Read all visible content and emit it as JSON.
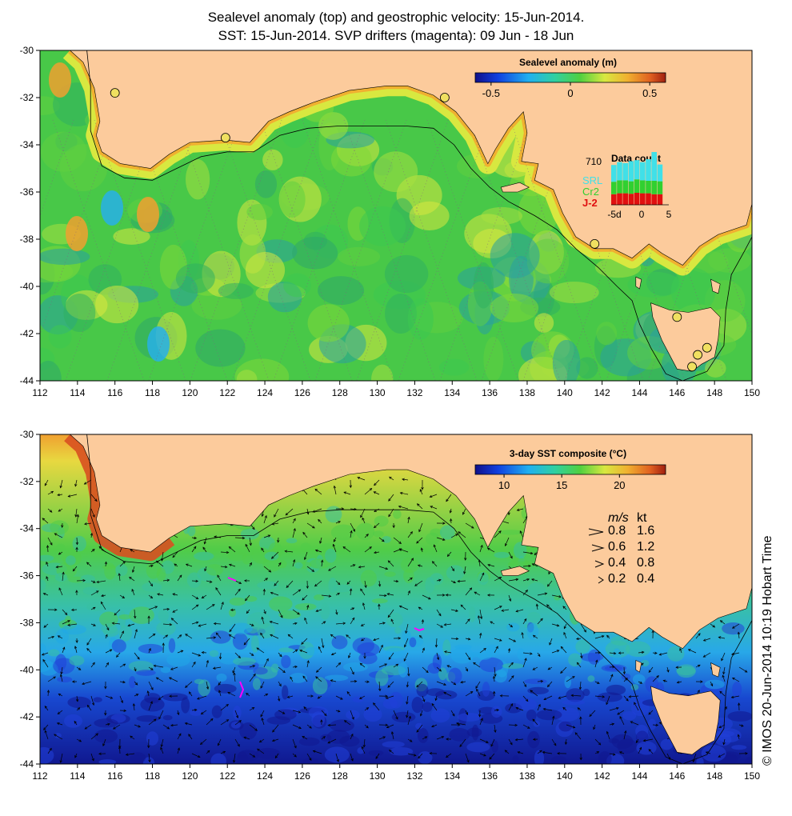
{
  "title": {
    "line1": "Sealevel anomaly (top) and geostrophic velocity: 15-Jun-2014.",
    "line2": "SST: 15-Jun-2014. SVP drifters (magenta): 09 Jun - 18 Jun"
  },
  "axes": {
    "lon_ticks": [
      "112",
      "114",
      "116",
      "118",
      "120",
      "122",
      "124",
      "126",
      "128",
      "130",
      "132",
      "134",
      "136",
      "138",
      "140",
      "142",
      "144",
      "146",
      "148",
      "150"
    ],
    "lat_ticks": [
      "-30",
      "-32",
      "-34",
      "-36",
      "-38",
      "-40",
      "-42",
      "-44"
    ],
    "lon_range": [
      112,
      150
    ],
    "lat_range": [
      -44,
      -30
    ]
  },
  "top_panel": {
    "colorbar_title": "Sealevel anomaly (m)",
    "colorbar_ticks": [
      "-0.5",
      "0",
      "0.5"
    ],
    "colorbar_range": [
      -0.6,
      0.6
    ],
    "data_count": {
      "title": "Data count",
      "max_label": "710",
      "satellites": [
        {
          "name": "SRL",
          "color": "#40e0e8"
        },
        {
          "name": "Cr2",
          "color": "#30d030"
        },
        {
          "name": "J-2",
          "color": "#e01010"
        }
      ],
      "x_ticks": [
        "-5d",
        "0",
        "5"
      ],
      "bars_fraction": {
        "SRL": [
          0.35,
          0.38,
          0.36,
          0.42,
          0.4,
          0.38,
          0.45,
          0.6,
          0.35
        ],
        "Cr2": [
          0.26,
          0.27,
          0.27,
          0.26,
          0.28,
          0.27,
          0.26,
          0.28,
          0.27
        ],
        "J-2": [
          0.22,
          0.24,
          0.24,
          0.23,
          0.25,
          0.24,
          0.24,
          0.22,
          0.22
        ]
      }
    },
    "tide_gauges": [
      {
        "lon": 116.0,
        "lat": -31.8
      },
      {
        "lon": 121.9,
        "lat": -33.7
      },
      {
        "lon": 133.6,
        "lat": -32.0
      },
      {
        "lon": 141.6,
        "lat": -38.2
      },
      {
        "lon": 146.0,
        "lat": -41.3
      },
      {
        "lon": 147.1,
        "lat": -42.9
      },
      {
        "lon": 147.6,
        "lat": -42.6
      },
      {
        "lon": 146.8,
        "lat": -43.4
      }
    ]
  },
  "bottom_panel": {
    "colorbar_title": "3-day SST composite (°C)",
    "colorbar_ticks": [
      "10",
      "15",
      "20"
    ],
    "colorbar_range": [
      7.5,
      24
    ],
    "velocity_legend": {
      "header_ms": "m/s",
      "header_kt": "kt",
      "rows": [
        {
          "ms": "0.8",
          "kt": "1.6"
        },
        {
          "ms": "0.6",
          "kt": "1.2"
        },
        {
          "ms": "0.4",
          "kt": "0.8"
        },
        {
          "ms": "0.2",
          "kt": "0.4"
        }
      ]
    }
  },
  "copyright": "© IMOS 20-Jun-2014 10:19 Hobart Time",
  "colors": {
    "land": "#fccb9c",
    "coast_outline": "#000000",
    "drifter": "#ff00ff",
    "gauge": "#f0e060"
  },
  "coastline": [
    [
      113.6,
      -30.0
    ],
    [
      114.3,
      -30.5
    ],
    [
      114.9,
      -31.6
    ],
    [
      115.2,
      -33.0
    ],
    [
      115.0,
      -33.6
    ],
    [
      115.3,
      -34.3
    ],
    [
      116.3,
      -34.8
    ],
    [
      117.9,
      -35.0
    ],
    [
      118.9,
      -34.4
    ],
    [
      120.0,
      -33.9
    ],
    [
      121.9,
      -33.8
    ],
    [
      123.2,
      -33.9
    ],
    [
      124.2,
      -33.0
    ],
    [
      125.3,
      -32.6
    ],
    [
      126.6,
      -32.2
    ],
    [
      128.5,
      -31.7
    ],
    [
      130.5,
      -31.5
    ],
    [
      131.6,
      -31.5
    ],
    [
      133.0,
      -31.9
    ],
    [
      134.2,
      -32.6
    ],
    [
      135.2,
      -33.6
    ],
    [
      135.9,
      -34.8
    ],
    [
      136.3,
      -34.2
    ],
    [
      137.0,
      -33.3
    ],
    [
      137.8,
      -32.6
    ],
    [
      138.0,
      -33.5
    ],
    [
      137.7,
      -34.7
    ],
    [
      138.6,
      -34.8
    ],
    [
      138.4,
      -35.5
    ],
    [
      139.4,
      -35.9
    ],
    [
      139.9,
      -36.9
    ],
    [
      140.6,
      -37.9
    ],
    [
      141.6,
      -38.4
    ],
    [
      142.6,
      -38.4
    ],
    [
      143.6,
      -38.8
    ],
    [
      144.5,
      -38.2
    ],
    [
      145.2,
      -38.6
    ],
    [
      146.3,
      -39.1
    ],
    [
      147.2,
      -38.3
    ],
    [
      148.2,
      -37.8
    ],
    [
      149.7,
      -37.4
    ],
    [
      150.0,
      -36.5
    ],
    [
      150.0,
      -30.0
    ]
  ],
  "tasmania": [
    [
      144.6,
      -40.7
    ],
    [
      145.6,
      -41.0
    ],
    [
      146.6,
      -41.1
    ],
    [
      147.8,
      -40.9
    ],
    [
      148.3,
      -41.3
    ],
    [
      148.2,
      -42.2
    ],
    [
      148.0,
      -43.0
    ],
    [
      147.3,
      -43.3
    ],
    [
      146.8,
      -43.6
    ],
    [
      146.0,
      -43.5
    ],
    [
      145.2,
      -42.3
    ],
    [
      144.7,
      -41.3
    ]
  ],
  "kangaroo_island": [
    [
      136.6,
      -35.8
    ],
    [
      137.6,
      -35.6
    ],
    [
      138.1,
      -35.8
    ],
    [
      137.5,
      -36.0
    ],
    [
      136.7,
      -36.0
    ]
  ],
  "king_island": [
    [
      143.8,
      -39.6
    ],
    [
      144.1,
      -39.7
    ],
    [
      144.0,
      -40.1
    ],
    [
      143.8,
      -40.0
    ]
  ],
  "flinders_island": [
    [
      147.8,
      -39.7
    ],
    [
      148.3,
      -39.9
    ],
    [
      148.2,
      -40.3
    ],
    [
      147.9,
      -40.2
    ]
  ],
  "shelf_edge": [
    [
      114.5,
      -30.0
    ],
    [
      114.7,
      -31.5
    ],
    [
      114.7,
      -33.4
    ],
    [
      115.3,
      -34.9
    ],
    [
      116.5,
      -35.4
    ],
    [
      118.0,
      -35.5
    ],
    [
      119.3,
      -35.0
    ],
    [
      120.6,
      -34.5
    ],
    [
      122.0,
      -34.3
    ],
    [
      123.4,
      -34.3
    ],
    [
      124.8,
      -33.6
    ],
    [
      126.3,
      -33.3
    ],
    [
      128.0,
      -33.2
    ],
    [
      130.0,
      -33.2
    ],
    [
      131.5,
      -33.2
    ],
    [
      133.0,
      -33.3
    ],
    [
      134.1,
      -34.0
    ],
    [
      135.0,
      -35.0
    ],
    [
      136.0,
      -35.8
    ],
    [
      137.0,
      -36.4
    ],
    [
      138.4,
      -37.0
    ],
    [
      139.6,
      -37.6
    ],
    [
      140.6,
      -38.4
    ],
    [
      141.8,
      -39.2
    ],
    [
      142.8,
      -40.0
    ],
    [
      143.6,
      -40.6
    ],
    [
      144.0,
      -41.6
    ],
    [
      144.6,
      -42.6
    ],
    [
      145.4,
      -43.7
    ],
    [
      146.3,
      -44.0
    ],
    [
      147.6,
      -43.6
    ],
    [
      148.5,
      -42.5
    ],
    [
      148.6,
      -41.0
    ],
    [
      148.9,
      -39.5
    ],
    [
      149.6,
      -38.5
    ],
    [
      150.0,
      -37.9
    ]
  ]
}
